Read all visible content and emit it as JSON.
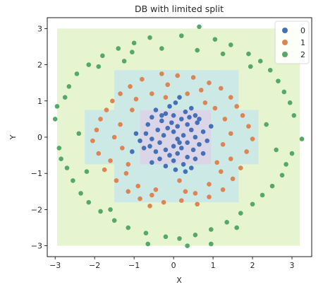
{
  "chart_data": {
    "type": "scatter",
    "title": "DB with limited split",
    "xlabel": "X",
    "ylabel": "Y",
    "xlim": [
      -3.2,
      3.5
    ],
    "ylim": [
      -3.3,
      3.3
    ],
    "xticks": [
      -3,
      -2,
      -1,
      0,
      1,
      2,
      3
    ],
    "yticks": [
      -3,
      -2,
      -1,
      0,
      1,
      2,
      3
    ],
    "grid": false,
    "legend_position": "top-right",
    "decision_regions": [
      {
        "class": "2",
        "color": "#e6f5d0",
        "x": [
          -2.95,
          3.2
        ],
        "y": [
          -3.0,
          3.0
        ]
      },
      {
        "class": "1",
        "color": "#cde9e6",
        "x": [
          -0.6,
          1.2
        ],
        "y": [
          1.0,
          1.85
        ]
      },
      {
        "class": "1",
        "color": "#cde9e6",
        "x": [
          -1.5,
          1.65
        ],
        "y": [
          0.75,
          1.85
        ]
      },
      {
        "class": "1",
        "color": "#cde9e6",
        "x": [
          -2.25,
          2.15
        ],
        "y": [
          -0.75,
          0.75
        ]
      },
      {
        "class": "1",
        "color": "#cde9e6",
        "x": [
          -1.5,
          1.65
        ],
        "y": [
          -1.8,
          -0.75
        ]
      },
      {
        "class": "0",
        "color": "#dad6e8",
        "x": [
          -0.85,
          0.95
        ],
        "y": [
          -0.75,
          0.75
        ]
      }
    ],
    "series": [
      {
        "name": "0",
        "color": "#4470b8",
        "points": [
          [
            0.05,
            0.95
          ],
          [
            0.15,
            1.1
          ],
          [
            -0.1,
            0.85
          ],
          [
            0.45,
            0.8
          ],
          [
            -0.45,
            0.75
          ],
          [
            0.3,
            0.7
          ],
          [
            -0.2,
            0.65
          ],
          [
            0.55,
            0.6
          ],
          [
            0.0,
            0.6
          ],
          [
            -0.55,
            0.55
          ],
          [
            0.2,
            0.5
          ],
          [
            -0.3,
            0.45
          ],
          [
            0.6,
            0.4
          ],
          [
            0.35,
            0.35
          ],
          [
            -0.65,
            0.35
          ],
          [
            0.1,
            0.3
          ],
          [
            -0.15,
            0.25
          ],
          [
            0.45,
            0.2
          ],
          [
            -0.4,
            0.2
          ],
          [
            0.75,
            0.15
          ],
          [
            0.0,
            0.15
          ],
          [
            -0.7,
            0.1
          ],
          [
            0.25,
            0.05
          ],
          [
            -0.25,
            0.05
          ],
          [
            0.55,
            0.0
          ],
          [
            -0.55,
            -0.05
          ],
          [
            0.1,
            -0.05
          ],
          [
            0.85,
            -0.1
          ],
          [
            -0.85,
            -0.1
          ],
          [
            0.35,
            -0.15
          ],
          [
            -0.35,
            -0.15
          ],
          [
            0.65,
            -0.2
          ],
          [
            0.0,
            -0.25
          ],
          [
            -0.6,
            -0.25
          ],
          [
            0.2,
            -0.3
          ],
          [
            -0.2,
            -0.35
          ],
          [
            0.5,
            -0.35
          ],
          [
            -0.45,
            -0.4
          ],
          [
            0.1,
            -0.45
          ],
          [
            0.75,
            -0.45
          ],
          [
            -0.1,
            -0.5
          ],
          [
            0.35,
            -0.55
          ],
          [
            -0.35,
            -0.6
          ],
          [
            0.55,
            -0.6
          ],
          [
            0.0,
            -0.65
          ],
          [
            -0.55,
            -0.7
          ],
          [
            0.25,
            -0.75
          ],
          [
            -0.2,
            -0.8
          ],
          [
            0.45,
            -0.85
          ],
          [
            0.05,
            -0.9
          ],
          [
            -1.05,
            -0.4
          ],
          [
            -0.95,
            0.1
          ],
          [
            0.95,
            0.3
          ],
          [
            0.4,
            0.55
          ],
          [
            -0.05,
            0.4
          ],
          [
            0.15,
            -0.15
          ],
          [
            -0.3,
            0.6
          ],
          [
            0.65,
            0.5
          ],
          [
            -0.75,
            -0.3
          ],
          [
            0.3,
            -0.95
          ]
        ]
      },
      {
        "name": "1",
        "color": "#dd8452",
        "points": [
          [
            -0.3,
            1.75
          ],
          [
            0.1,
            1.7
          ],
          [
            0.5,
            1.65
          ],
          [
            -0.8,
            1.6
          ],
          [
            0.9,
            1.5
          ],
          [
            -1.1,
            1.4
          ],
          [
            1.2,
            1.35
          ],
          [
            -1.35,
            1.2
          ],
          [
            -0.55,
            1.2
          ],
          [
            0.35,
            1.2
          ],
          [
            1.45,
            1.1
          ],
          [
            -1.55,
            1.0
          ],
          [
            -0.95,
            1.05
          ],
          [
            0.8,
            0.95
          ],
          [
            1.6,
            0.85
          ],
          [
            -1.7,
            0.75
          ],
          [
            1.75,
            0.6
          ],
          [
            -1.85,
            0.5
          ],
          [
            1.3,
            0.5
          ],
          [
            -1.35,
            0.35
          ],
          [
            1.9,
            0.3
          ],
          [
            -1.95,
            0.2
          ],
          [
            1.45,
            0.1
          ],
          [
            -1.5,
            0.0
          ],
          [
            2.0,
            -0.05
          ],
          [
            -2.05,
            -0.1
          ],
          [
            1.25,
            -0.2
          ],
          [
            -1.3,
            -0.3
          ],
          [
            1.85,
            -0.4
          ],
          [
            -1.9,
            -0.45
          ],
          [
            1.45,
            -0.6
          ],
          [
            -1.6,
            -0.65
          ],
          [
            1.7,
            -0.85
          ],
          [
            -1.75,
            -0.9
          ],
          [
            1.2,
            -0.95
          ],
          [
            -1.2,
            -1.0
          ],
          [
            1.5,
            -1.15
          ],
          [
            -1.45,
            -1.2
          ],
          [
            0.9,
            -1.3
          ],
          [
            -0.9,
            -1.35
          ],
          [
            1.25,
            -1.45
          ],
          [
            -1.15,
            -1.5
          ],
          [
            0.55,
            -1.55
          ],
          [
            -0.55,
            -1.6
          ],
          [
            0.9,
            -1.65
          ],
          [
            -0.85,
            -1.7
          ],
          [
            0.2,
            -1.75
          ],
          [
            -0.25,
            -1.8
          ],
          [
            0.6,
            -1.85
          ],
          [
            -0.6,
            -1.9
          ],
          [
            -0.15,
            1.45
          ],
          [
            0.7,
            1.3
          ],
          [
            -0.45,
            -1.45
          ],
          [
            0.3,
            -1.5
          ],
          [
            -1.05,
            0.75
          ],
          [
            1.05,
            0.8
          ],
          [
            -1.15,
            -0.75
          ],
          [
            1.1,
            -0.7
          ],
          [
            -0.2,
            1.1
          ],
          [
            0.15,
            -1.2
          ]
        ]
      },
      {
        "name": "2",
        "color": "#55a868",
        "points": [
          [
            0.65,
            3.05
          ],
          [
            -0.6,
            2.75
          ],
          [
            0.2,
            2.8
          ],
          [
            1.05,
            2.7
          ],
          [
            -1.0,
            2.6
          ],
          [
            1.45,
            2.55
          ],
          [
            -1.4,
            2.45
          ],
          [
            1.9,
            2.3
          ],
          [
            -1.8,
            2.25
          ],
          [
            2.2,
            2.1
          ],
          [
            -2.15,
            2.0
          ],
          [
            2.45,
            1.85
          ],
          [
            -2.45,
            1.75
          ],
          [
            2.65,
            1.55
          ],
          [
            -2.65,
            1.4
          ],
          [
            2.8,
            1.25
          ],
          [
            -2.75,
            1.1
          ],
          [
            2.95,
            0.95
          ],
          [
            -2.95,
            0.85
          ],
          [
            3.05,
            0.6
          ],
          [
            -3.0,
            0.5
          ],
          [
            3.25,
            -0.05
          ],
          [
            -2.9,
            -0.3
          ],
          [
            3.0,
            -0.45
          ],
          [
            -2.85,
            -0.6
          ],
          [
            2.85,
            -0.75
          ],
          [
            -2.7,
            -0.85
          ],
          [
            2.75,
            -1.05
          ],
          [
            -2.55,
            -1.2
          ],
          [
            2.5,
            -1.35
          ],
          [
            -2.35,
            -1.55
          ],
          [
            2.25,
            -1.6
          ],
          [
            -2.15,
            -1.8
          ],
          [
            2.0,
            -1.85
          ],
          [
            -1.85,
            -2.05
          ],
          [
            1.7,
            -2.1
          ],
          [
            -1.5,
            -2.3
          ],
          [
            1.35,
            -2.35
          ],
          [
            -1.15,
            -2.5
          ],
          [
            0.95,
            -2.55
          ],
          [
            -0.7,
            -2.65
          ],
          [
            0.55,
            -2.7
          ],
          [
            -0.2,
            -2.75
          ],
          [
            0.15,
            -2.8
          ],
          [
            -0.65,
            -2.95
          ],
          [
            0.35,
            -3.0
          ],
          [
            1.6,
            -2.5
          ],
          [
            -1.9,
            1.95
          ],
          [
            2.35,
            0.35
          ],
          [
            -2.4,
            0.1
          ],
          [
            1.25,
            2.3
          ],
          [
            -0.3,
            2.45
          ],
          [
            0.6,
            2.4
          ],
          [
            -1.6,
            -2.0
          ],
          [
            2.6,
            -0.35
          ],
          [
            -2.2,
            -0.95
          ],
          [
            1.95,
            1.95
          ],
          [
            -1.25,
            2.1
          ],
          [
            0.95,
            -2.95
          ],
          [
            -1.05,
            2.35
          ]
        ]
      }
    ]
  }
}
